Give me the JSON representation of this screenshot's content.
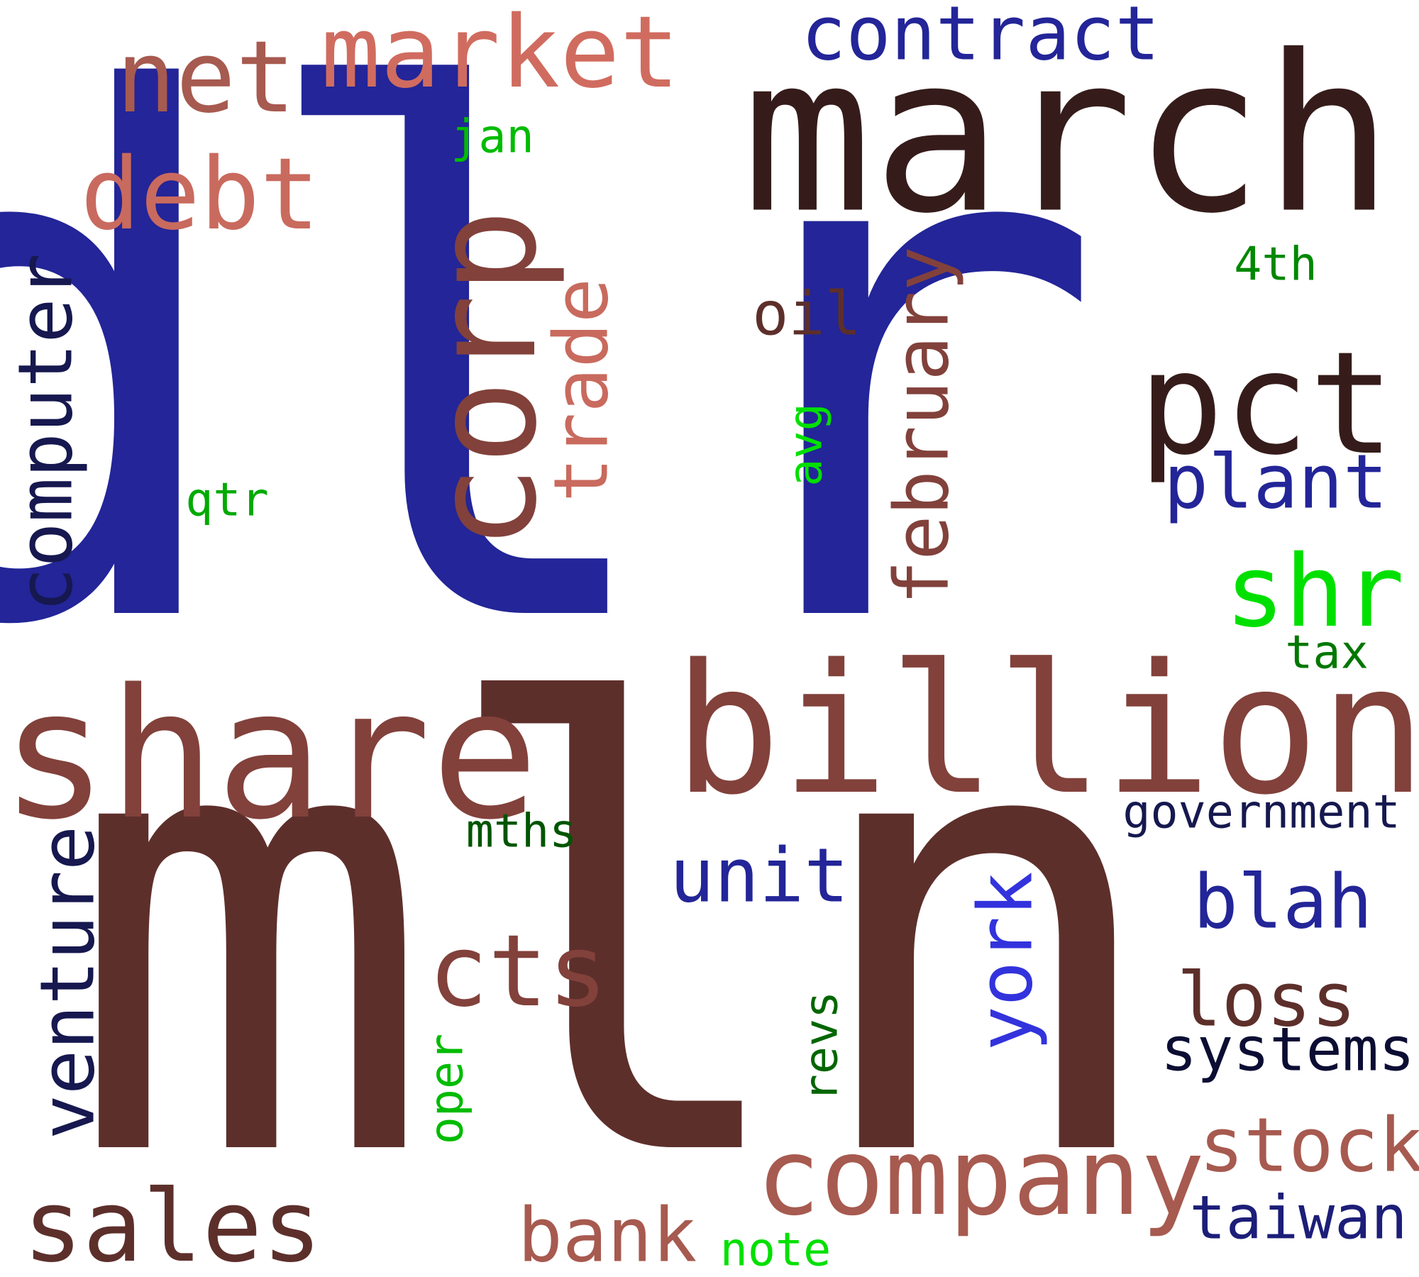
{
  "words": {
    "dlr": {
      "text": "dlr",
      "color": "#232598"
    },
    "mln": {
      "text": "mln",
      "color": "#5d2f2b"
    },
    "march": {
      "text": "march",
      "color": "#351c1a"
    },
    "share": {
      "text": "share",
      "color": "#82413b"
    },
    "billion": {
      "text": "billion",
      "color": "#82413b"
    },
    "corp": {
      "text": "corp",
      "color": "#82413b"
    },
    "pct": {
      "text": "pct",
      "color": "#351c1a"
    },
    "market": {
      "text": "market",
      "color": "#d06c5f"
    },
    "net": {
      "text": "net",
      "color": "#a75a4f"
    },
    "debt": {
      "text": "debt",
      "color": "#c96a5e"
    },
    "contract": {
      "text": "contract",
      "color": "#232598"
    },
    "company": {
      "text": "company",
      "color": "#a75a4f"
    },
    "sales": {
      "text": "sales",
      "color": "#5d2f2b"
    },
    "computer": {
      "text": "computer",
      "color": "#16184f"
    },
    "venture": {
      "text": "venture",
      "color": "#16184f"
    },
    "cts": {
      "text": "cts",
      "color": "#82413b"
    },
    "february": {
      "text": "february",
      "color": "#82413b"
    },
    "trade": {
      "text": "trade",
      "color": "#c96a5e"
    },
    "shr": {
      "text": "shr",
      "color": "#00e000"
    },
    "plant": {
      "text": "plant",
      "color": "#232598"
    },
    "unit": {
      "text": "unit",
      "color": "#232598"
    },
    "blah": {
      "text": "blah",
      "color": "#232598"
    },
    "loss": {
      "text": "loss",
      "color": "#5d2f2b"
    },
    "systems": {
      "text": "systems",
      "color": "#0c0d33"
    },
    "stock": {
      "text": "stock",
      "color": "#a75a4f"
    },
    "taiwan": {
      "text": "taiwan",
      "color": "#1c1e78"
    },
    "bank": {
      "text": "bank",
      "color": "#a75a4f"
    },
    "oil": {
      "text": "oil",
      "color": "#5d2f2b"
    },
    "york": {
      "text": "york",
      "color": "#3333dd"
    },
    "government": {
      "text": "government",
      "color": "#16184f"
    },
    "jan": {
      "text": "jan",
      "color": "#00bb00"
    },
    "4th": {
      "text": "4th",
      "color": "#008800"
    },
    "qtr": {
      "text": "qtr",
      "color": "#00aa00"
    },
    "avg": {
      "text": "avg",
      "color": "#00e000"
    },
    "tax": {
      "text": "tax",
      "color": "#007700"
    },
    "mths": {
      "text": "mths",
      "color": "#005500"
    },
    "revs": {
      "text": "revs",
      "color": "#006600"
    },
    "oper": {
      "text": "oper",
      "color": "#00bb00"
    },
    "note": {
      "text": "note",
      "color": "#00e000"
    }
  }
}
